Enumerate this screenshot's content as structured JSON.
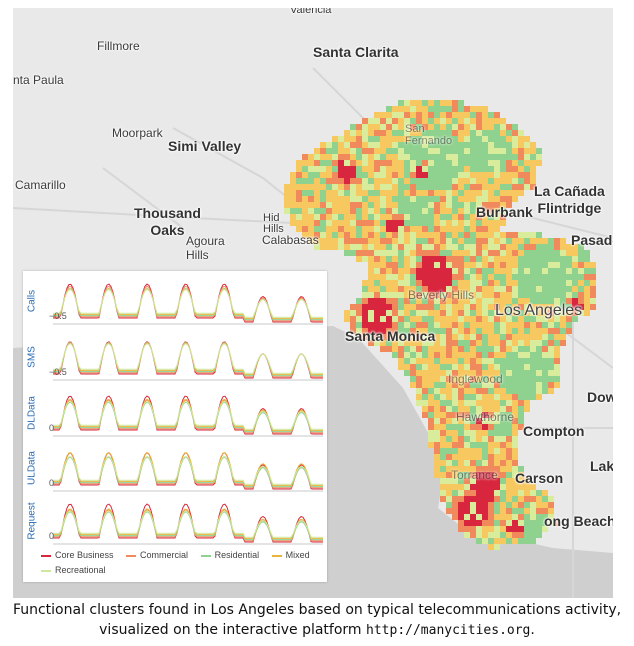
{
  "map": {
    "labels": [
      {
        "id": "valencia",
        "text": "Valencia"
      },
      {
        "id": "fillmore",
        "text": "Fillmore"
      },
      {
        "id": "santa-clarita",
        "text": "Santa Clarita"
      },
      {
        "id": "santa-paula",
        "text": "nta Paula"
      },
      {
        "id": "moorpark",
        "text": "Moorpark"
      },
      {
        "id": "simi-valley",
        "text": "Simi Valley"
      },
      {
        "id": "san-fernando",
        "text": "San\nFernando"
      },
      {
        "id": "la-canada",
        "text": "La Cañada\nFlintridge"
      },
      {
        "id": "camarillo",
        "text": "Camarillo"
      },
      {
        "id": "thousand-oaks",
        "text": "Thousand\nOaks"
      },
      {
        "id": "burbank",
        "text": "Burbank"
      },
      {
        "id": "hidden-hills",
        "text": "Hid\nHills"
      },
      {
        "id": "agoura-hills",
        "text": "Agoura\nHills"
      },
      {
        "id": "calabasas",
        "text": "Calabasas"
      },
      {
        "id": "pasadena",
        "text": "Pasade"
      },
      {
        "id": "beverly-hills",
        "text": "Beverly Hills"
      },
      {
        "id": "los-angeles",
        "text": "Los Angeles"
      },
      {
        "id": "santa-monica",
        "text": "Santa Monica"
      },
      {
        "id": "inglewood",
        "text": "Inglewood"
      },
      {
        "id": "downey",
        "text": "Dow"
      },
      {
        "id": "hawthorne",
        "text": "Hawthorne"
      },
      {
        "id": "compton",
        "text": "Compton"
      },
      {
        "id": "torrance",
        "text": "Torrance"
      },
      {
        "id": "carson",
        "text": "Carson"
      },
      {
        "id": "lakewood",
        "text": "Lake"
      },
      {
        "id": "long-beach",
        "text": "ong Beach"
      }
    ],
    "colors": {
      "core_business": "#d7263d",
      "commercial": "#f08a5d",
      "residential": "#8fd18f",
      "mixed": "#f6c85f",
      "recreational": "#d9ec9c",
      "ocean": "#cfcfcf",
      "land": "#e9e9e9"
    }
  },
  "panel": {
    "rows": [
      {
        "label": "Calls",
        "tick": "0.5"
      },
      {
        "label": "SMS",
        "tick": "0.5"
      },
      {
        "label": "DLData",
        "tick": "0"
      },
      {
        "label": "ULData",
        "tick": "0"
      },
      {
        "label": "Request",
        "tick": "0"
      }
    ],
    "legend": [
      {
        "name": "Core Business",
        "color": "#d7263d"
      },
      {
        "name": "Commercial",
        "color": "#f08a5d"
      },
      {
        "name": "Residential",
        "color": "#8fd18f"
      },
      {
        "name": "Mixed",
        "color": "#e8b43a"
      },
      {
        "name": "Recreational",
        "color": "#cfe8a0"
      }
    ]
  },
  "caption": {
    "line1": "Functional clusters found in Los Angeles based on typical telecommunications activity,",
    "line2": "visualized on the interactive platform ",
    "url": "http://manycities.org",
    "end": "."
  }
}
